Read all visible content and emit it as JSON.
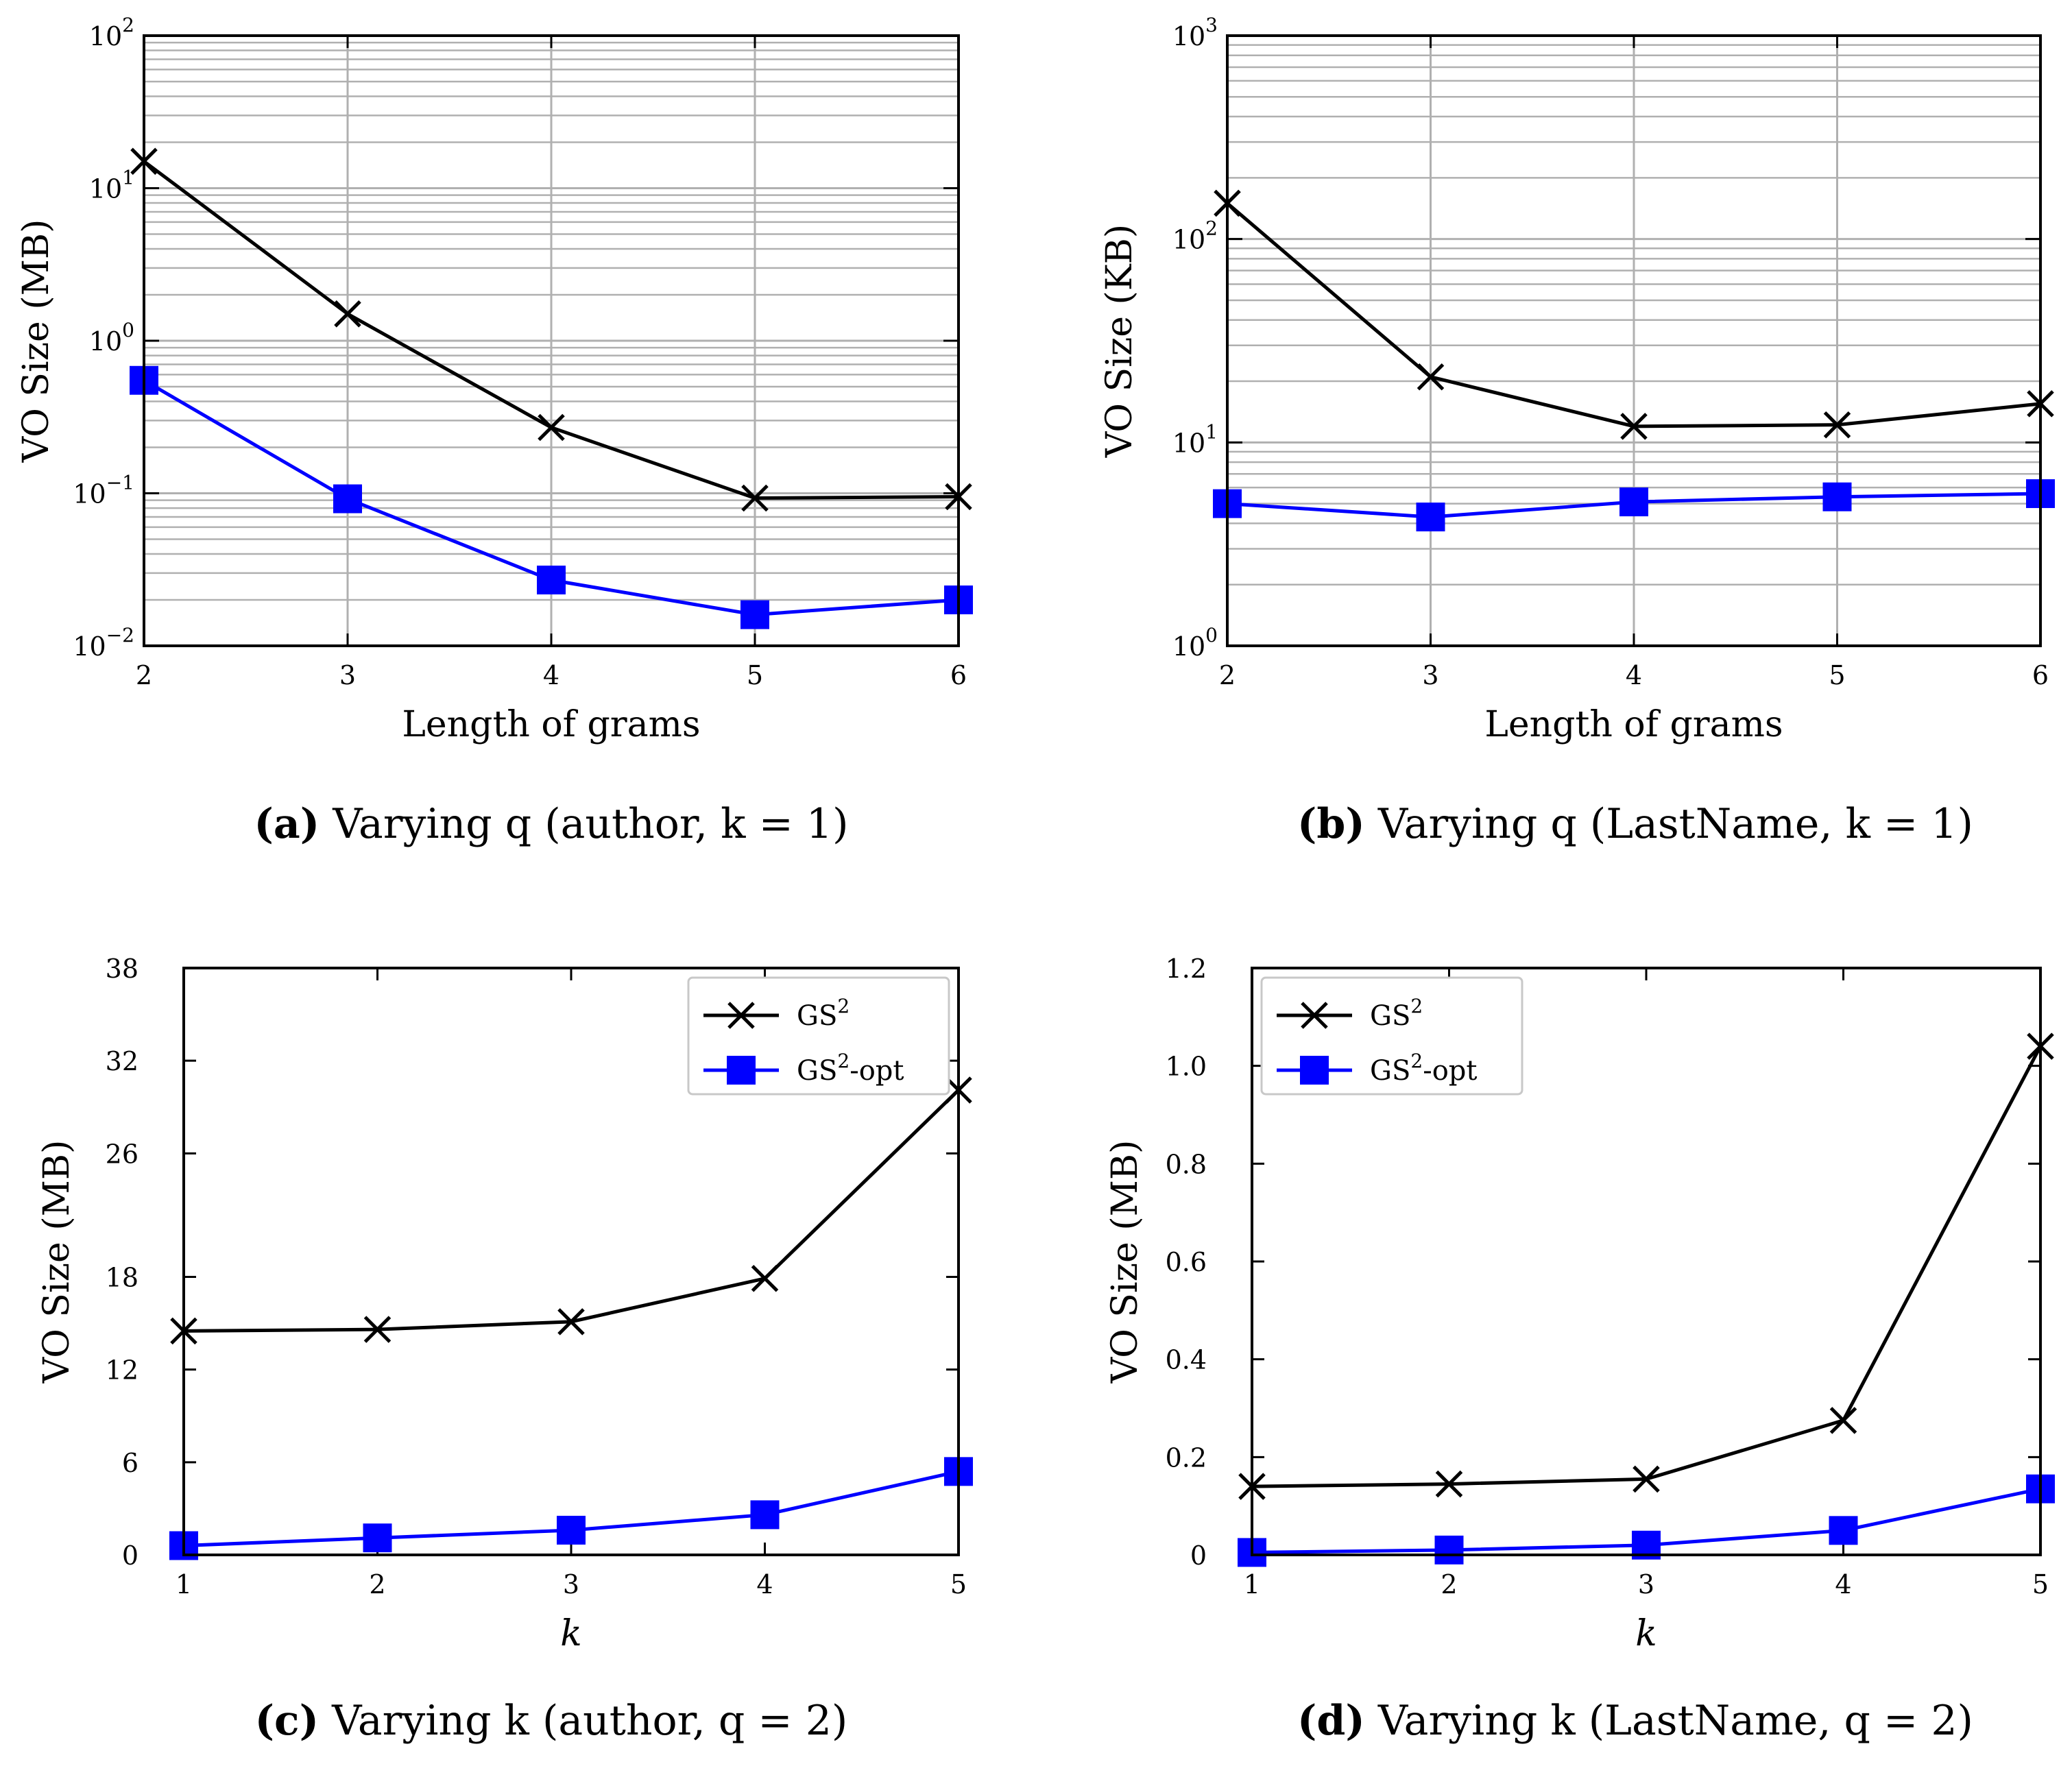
{
  "chart_data": [
    {
      "id": "a",
      "type": "line",
      "caption": {
        "letter": "(a)",
        "text": "Varying q (author, k = 1)"
      },
      "xlabel": "Length of grams",
      "ylabel": "VO Size (MB)",
      "yscale": "log",
      "ylim": [
        0.01,
        100
      ],
      "y_ticks": [
        {
          "base": "10",
          "exp": "−2"
        },
        {
          "base": "10",
          "exp": "−1"
        },
        {
          "base": "10",
          "exp": "0"
        },
        {
          "base": "10",
          "exp": "1"
        },
        {
          "base": "10",
          "exp": "2"
        }
      ],
      "x": [
        2,
        3,
        4,
        5,
        6
      ],
      "x_ticks": [
        "2",
        "3",
        "4",
        "5",
        "6"
      ],
      "grid": true,
      "legend": null,
      "series": [
        {
          "values": [
            15,
            1.5,
            0.27,
            0.093,
            0.095
          ],
          "marker": "x",
          "color": "#000000"
        },
        {
          "values": [
            0.55,
            0.092,
            0.027,
            0.016,
            0.02
          ],
          "marker": "square",
          "color": "#0000ff"
        }
      ]
    },
    {
      "id": "b",
      "type": "line",
      "caption": {
        "letter": "(b)",
        "text": "Varying q (LastName, k = 1)"
      },
      "xlabel": "Length of grams",
      "ylabel": "VO Size (KB)",
      "yscale": "log",
      "ylim": [
        1,
        1000
      ],
      "y_ticks": [
        {
          "base": "10",
          "exp": "0"
        },
        {
          "base": "10",
          "exp": "1"
        },
        {
          "base": "10",
          "exp": "2"
        },
        {
          "base": "10",
          "exp": "3"
        }
      ],
      "x": [
        2,
        3,
        4,
        5,
        6
      ],
      "x_ticks": [
        "2",
        "3",
        "4",
        "5",
        "6"
      ],
      "grid": true,
      "legend": null,
      "series": [
        {
          "values": [
            150,
            21,
            12,
            12.2,
            15.5
          ],
          "marker": "x",
          "color": "#000000"
        },
        {
          "values": [
            5,
            4.3,
            5.1,
            5.4,
            5.6
          ],
          "marker": "square",
          "color": "#0000ff"
        }
      ]
    },
    {
      "id": "c",
      "type": "line",
      "caption": {
        "letter": "(c)",
        "text": "Varying k (author, q = 2)"
      },
      "xlabel": "k",
      "ylabel": "VO Size (MB)",
      "yscale": "linear",
      "ylim": [
        0,
        38
      ],
      "y_ticks": [
        "0",
        "6",
        "12",
        "18",
        "26",
        "32",
        "38"
      ],
      "y_tick_values": [
        0,
        6,
        12,
        18,
        26,
        32,
        38
      ],
      "x": [
        1,
        2,
        3,
        4,
        5
      ],
      "x_ticks": [
        "1",
        "2",
        "3",
        "4",
        "5"
      ],
      "grid": false,
      "legend": "top-right",
      "series": [
        {
          "name": "GS",
          "name_sup": "2",
          "name_suffix": "",
          "values": [
            14.5,
            14.6,
            15.1,
            17.9,
            30.1
          ],
          "marker": "x",
          "color": "#000000"
        },
        {
          "name": "GS",
          "name_sup": "2",
          "name_suffix": "-opt",
          "values": [
            0.6,
            1.1,
            1.6,
            2.6,
            5.4
          ],
          "marker": "square",
          "color": "#0000ff"
        }
      ]
    },
    {
      "id": "d",
      "type": "line",
      "caption": {
        "letter": "(d)",
        "text": "Varying k (LastName, q = 2)"
      },
      "xlabel": "k",
      "ylabel": "VO Size (MB)",
      "yscale": "linear",
      "ylim": [
        0,
        1.2
      ],
      "y_ticks": [
        "0",
        "0.2",
        "0.4",
        "0.6",
        "0.8",
        "1.0",
        "1.2"
      ],
      "y_tick_values": [
        0,
        0.2,
        0.4,
        0.6,
        0.8,
        1.0,
        1.2
      ],
      "x": [
        1,
        2,
        3,
        4,
        5
      ],
      "x_ticks": [
        "1",
        "2",
        "3",
        "4",
        "5"
      ],
      "grid": false,
      "legend": "top-left",
      "series": [
        {
          "name": "GS",
          "name_sup": "2",
          "name_suffix": "",
          "values": [
            0.14,
            0.145,
            0.155,
            0.275,
            1.04
          ],
          "marker": "x",
          "color": "#000000"
        },
        {
          "name": "GS",
          "name_sup": "2",
          "name_suffix": "-opt",
          "values": [
            0.005,
            0.01,
            0.02,
            0.05,
            0.135
          ],
          "marker": "square",
          "color": "#0000ff"
        }
      ]
    }
  ]
}
